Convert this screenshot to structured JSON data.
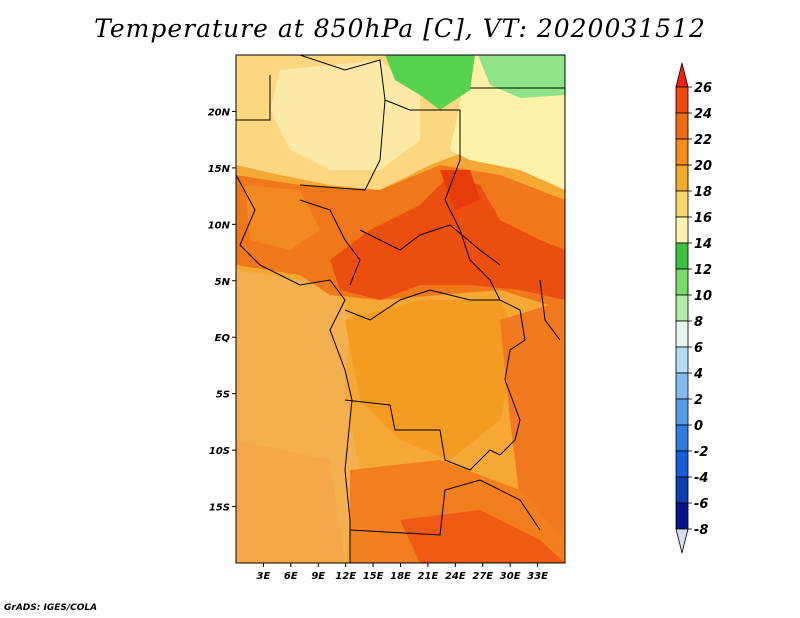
{
  "title": "Temperature at 850hPa [C], VT: 2020031512",
  "credit": "GrADS: IGES/COLA",
  "map": {
    "lon_range": [
      0,
      36
    ],
    "lat_range": [
      -20,
      25
    ],
    "lon_ticks": [
      {
        "value": 3,
        "label": "3E"
      },
      {
        "value": 6,
        "label": "6E"
      },
      {
        "value": 9,
        "label": "9E"
      },
      {
        "value": 12,
        "label": "12E"
      },
      {
        "value": 15,
        "label": "15E"
      },
      {
        "value": 18,
        "label": "18E"
      },
      {
        "value": 21,
        "label": "21E"
      },
      {
        "value": 24,
        "label": "24E"
      },
      {
        "value": 27,
        "label": "27E"
      },
      {
        "value": 30,
        "label": "30E"
      },
      {
        "value": 33,
        "label": "33E"
      }
    ],
    "lat_ticks": [
      {
        "value": 20,
        "label": "20N"
      },
      {
        "value": 15,
        "label": "15N"
      },
      {
        "value": 10,
        "label": "10N"
      },
      {
        "value": 5,
        "label": "5N"
      },
      {
        "value": 0,
        "label": "EQ"
      },
      {
        "value": -5,
        "label": "5S"
      },
      {
        "value": -10,
        "label": "10S"
      },
      {
        "value": -15,
        "label": "15S"
      }
    ]
  },
  "colorbar": {
    "levels": [
      "26",
      "24",
      "22",
      "20",
      "18",
      "16",
      "14",
      "12",
      "10",
      "8",
      "6",
      "4",
      "2",
      "0",
      "-2",
      "-4",
      "-6",
      "-8"
    ],
    "colors": [
      "#f0200f",
      "#f04a10",
      "#f26a12",
      "#f68c18",
      "#f6aa2c",
      "#fcd46c",
      "#fef4b0",
      "#3ec23e",
      "#78dc6a",
      "#b0eca6",
      "#e4f6ee",
      "#b4dcf4",
      "#82bcee",
      "#569ce8",
      "#2e7ce0",
      "#145edc",
      "#0a40b4",
      "#06148c",
      "#d8dcf4"
    ]
  },
  "fields": {
    "background": "#f7b640",
    "sahara_pale": "#fce28a",
    "warm_belt": "#f06a14",
    "hot_core": "#e8420e",
    "green_cold": "#56d24c",
    "pale_north": "#fef0a0",
    "ocean_orange": "#f4ac4a",
    "southern_warm": "#f28620"
  }
}
